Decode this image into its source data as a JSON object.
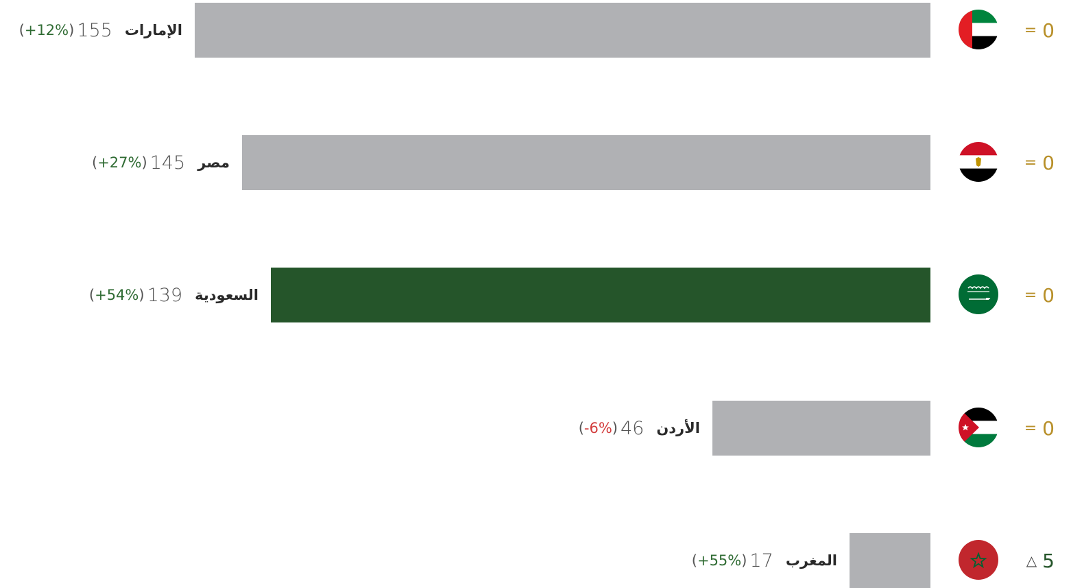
{
  "chart_data": {
    "type": "bar",
    "orientation": "horizontal",
    "rows": [
      {
        "country": "الإمارات",
        "value": 155,
        "change": "+12%",
        "change_sign": "pos",
        "rank_symbol": "=",
        "rank_change": "0",
        "rank_state": "same",
        "highlight": false,
        "flag": "uae-flag-icon"
      },
      {
        "country": "مصر",
        "value": 145,
        "change": "+27%",
        "change_sign": "pos",
        "rank_symbol": "=",
        "rank_change": "0",
        "rank_state": "same",
        "highlight": false,
        "flag": "egypt-flag-icon"
      },
      {
        "country": "السعودية",
        "value": 139,
        "change": "+54%",
        "change_sign": "pos",
        "rank_symbol": "=",
        "rank_change": "0",
        "rank_state": "same",
        "highlight": true,
        "flag": "saudi-flag-icon"
      },
      {
        "country": "الأردن",
        "value": 46,
        "change": "-6%",
        "change_sign": "neg",
        "rank_symbol": "=",
        "rank_change": "0",
        "rank_state": "same",
        "highlight": false,
        "flag": "jordan-flag-icon"
      },
      {
        "country": "المغرب",
        "value": 17,
        "change": "+55%",
        "change_sign": "pos",
        "rank_symbol": "△",
        "rank_change": "5",
        "rank_state": "up",
        "highlight": false,
        "flag": "morocco-flag-icon"
      }
    ],
    "colors": {
      "bar": "#b0b1b4",
      "highlight_bar": "#25552a",
      "positive_change": "#2f6b33",
      "negative_change": "#d23b3b",
      "rank_same": "#b8902a",
      "rank_up": "#25552a"
    }
  }
}
